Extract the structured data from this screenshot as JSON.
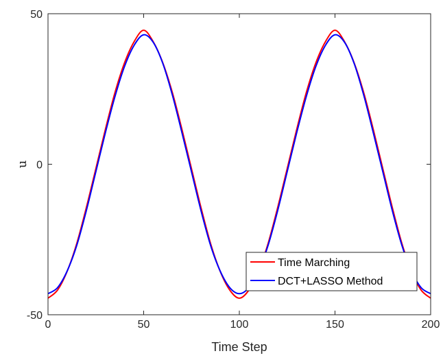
{
  "chart_data": {
    "type": "line",
    "xlabel": "Time Step",
    "ylabel": "u",
    "xlim": [
      0,
      200
    ],
    "ylim": [
      -50,
      50
    ],
    "xticks": [
      0,
      50,
      100,
      150,
      200
    ],
    "yticks": [
      -50,
      0,
      50
    ],
    "grid": false,
    "legend_position": "bottom-right",
    "series": [
      {
        "name": "Time Marching",
        "color": "#ff0000",
        "x": [
          0,
          5,
          10,
          15,
          20,
          25,
          30,
          35,
          40,
          45,
          50,
          55,
          60,
          65,
          70,
          75,
          80,
          85,
          90,
          95,
          100,
          105,
          110,
          115,
          120,
          125,
          130,
          135,
          140,
          145,
          150,
          155,
          160,
          165,
          170,
          175,
          180,
          185,
          190,
          195,
          200
        ],
        "y": [
          -44.5,
          -41.8,
          -35.6,
          -26.4,
          -14.5,
          -1.5,
          11.6,
          23.8,
          33.7,
          40.7,
          44.5,
          40.7,
          33.7,
          23.8,
          11.6,
          -1.5,
          -14.5,
          -26.4,
          -35.6,
          -41.8,
          -44.5,
          -41.8,
          -35.6,
          -26.4,
          -14.5,
          -1.5,
          11.6,
          23.8,
          33.7,
          40.7,
          44.5,
          40.7,
          33.7,
          23.8,
          11.6,
          -1.5,
          -14.5,
          -26.4,
          -35.6,
          -41.8,
          -44.5
        ]
      },
      {
        "name": "DCT+LASSO Method",
        "color": "#0000ff",
        "x": [
          0,
          5,
          10,
          15,
          20,
          25,
          30,
          35,
          40,
          45,
          50,
          55,
          60,
          65,
          70,
          75,
          80,
          85,
          90,
          95,
          100,
          105,
          110,
          115,
          120,
          125,
          130,
          135,
          140,
          145,
          150,
          155,
          160,
          165,
          170,
          175,
          180,
          185,
          190,
          195,
          200
        ],
        "y": [
          -43.0,
          -41.0,
          -35.5,
          -27.0,
          -15.5,
          -2.5,
          10.5,
          22.5,
          32.5,
          39.5,
          43.0,
          40.5,
          33.5,
          23.0,
          10.5,
          -2.5,
          -15.5,
          -27.0,
          -35.5,
          -41.0,
          -43.0,
          -41.0,
          -35.5,
          -27.0,
          -15.5,
          -2.5,
          10.5,
          22.5,
          32.5,
          39.5,
          43.0,
          40.5,
          33.5,
          23.0,
          10.5,
          -2.5,
          -15.5,
          -27.0,
          -35.5,
          -41.0,
          -43.0
        ]
      }
    ]
  }
}
